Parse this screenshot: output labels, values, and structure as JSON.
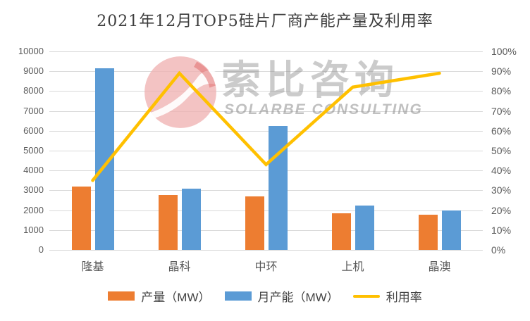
{
  "title": "2021年12月TOP5硅片厂商产能产量及利用率",
  "watermark": {
    "cn": "索比咨询",
    "en": "SOLARBE CONSULTING"
  },
  "colors": {
    "production": "#ED7D31",
    "capacity": "#5B9BD5",
    "utilization": "#FFC000",
    "gridline": "#D9D9D9",
    "axis_text": "#595959",
    "title_text": "#3D3D3D",
    "logo_pink": "#EFAFAF"
  },
  "chart_data": {
    "type": "bar",
    "subtype": "combo-bar-line-dual-axis",
    "title": "2021年12月TOP5硅片厂商产能产量及利用率",
    "categories": [
      "隆基",
      "晶科",
      "中环",
      "上机",
      "晶澳"
    ],
    "series": [
      {
        "name": "产量（MW）",
        "type": "bar",
        "axis": "left",
        "values": [
          3200,
          2750,
          2700,
          1850,
          1790
        ]
      },
      {
        "name": "月产能（MW）",
        "type": "bar",
        "axis": "left",
        "values": [
          9150,
          3080,
          6250,
          2250,
          2000
        ]
      },
      {
        "name": "利用率",
        "type": "line",
        "axis": "right",
        "values_pct": [
          35,
          89,
          43,
          82,
          89
        ]
      }
    ],
    "left_axis": {
      "min": 0,
      "max": 10000,
      "step": 1000,
      "ticks": [
        "10000",
        "9000",
        "8000",
        "7000",
        "6000",
        "5000",
        "4000",
        "3000",
        "2000",
        "1000",
        "0"
      ]
    },
    "right_axis": {
      "min": "0%",
      "max": "100%",
      "step": "10%",
      "ticks": [
        "100%",
        "90%",
        "80%",
        "70%",
        "60%",
        "50%",
        "40%",
        "30%",
        "20%",
        "10%",
        "0%"
      ]
    },
    "grid": true,
    "legend_position": "bottom"
  }
}
